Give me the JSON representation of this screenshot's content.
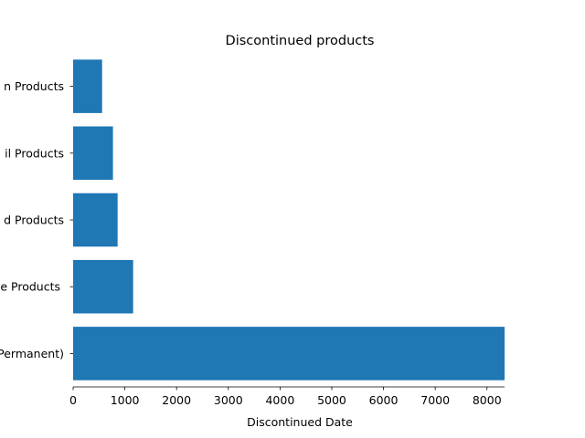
{
  "chart_data": {
    "type": "bar",
    "orientation": "horizontal",
    "title": "Discontinued products",
    "xlabel": "Discontinued Date",
    "ylabel": "",
    "categories": [
      "(Permanent)",
      "e Products ",
      "d Products",
      "il Products",
      "n Products"
    ],
    "values": [
      8340,
      1160,
      860,
      770,
      560
    ],
    "xlim": [
      0,
      8340
    ],
    "xticks": [
      0,
      1000,
      2000,
      3000,
      4000,
      5000,
      6000,
      7000,
      8000
    ],
    "grid": false,
    "legend": "none",
    "bar_color": "#1f77b4"
  }
}
